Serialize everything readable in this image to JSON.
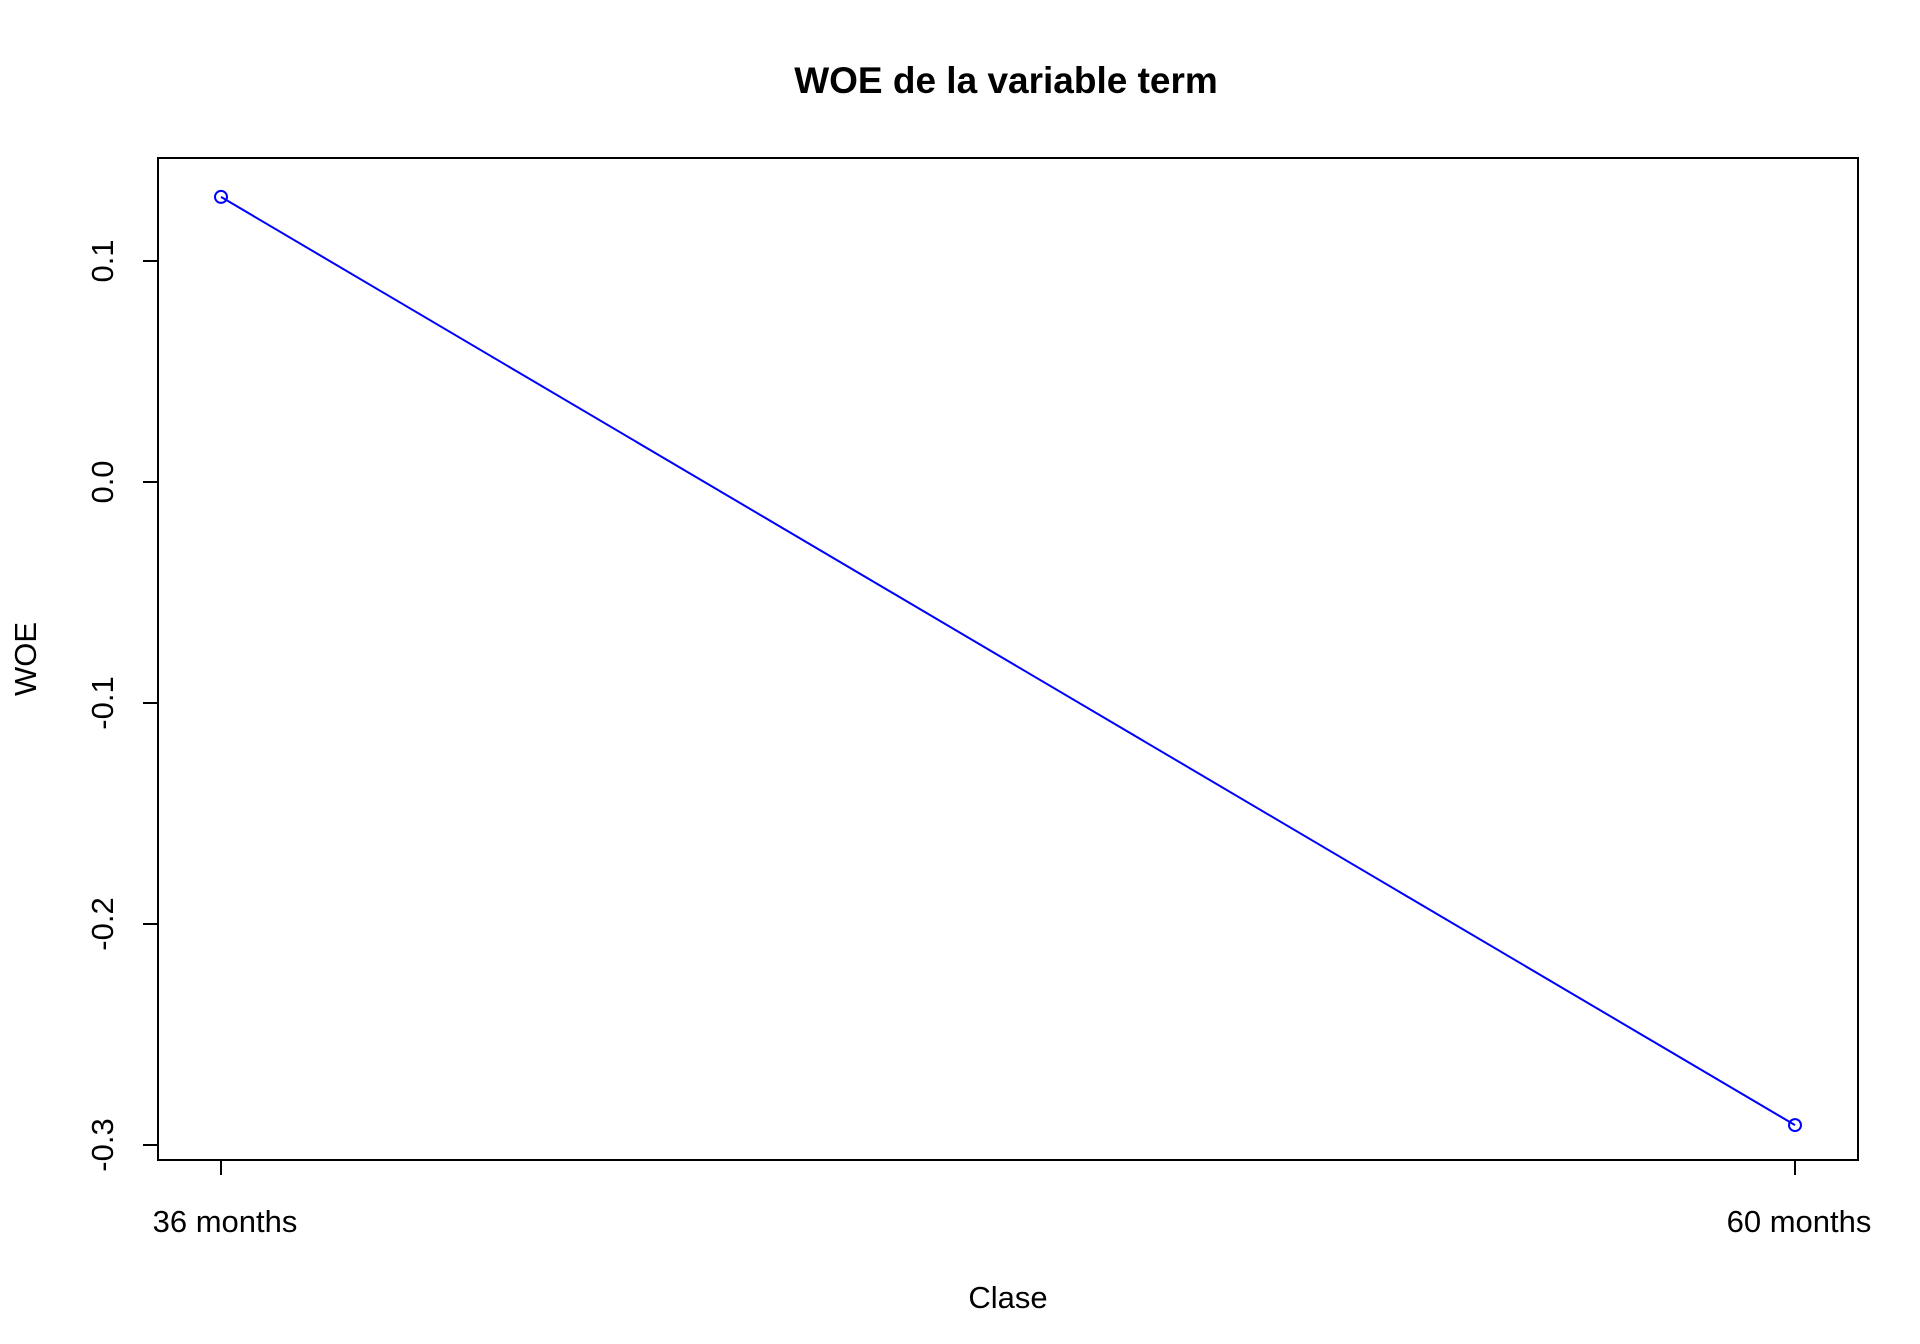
{
  "chart_data": {
    "type": "line",
    "title": "WOE de la variable term",
    "xlabel": "Clase",
    "ylabel": "WOE",
    "categories": [
      "36 months",
      "60 months"
    ],
    "series": [
      {
        "values": [
          0.129,
          -0.291
        ],
        "color": "#0000ff",
        "marker": "open-circle"
      }
    ],
    "yticks": [
      -0.3,
      -0.2,
      -0.1,
      0.0,
      0.1
    ],
    "ytick_labels": [
      "-0.3",
      "-0.2",
      "-0.1",
      "0.0",
      "0.1"
    ],
    "ylim": [
      -0.3,
      0.14
    ],
    "grid": false,
    "legend": "none"
  }
}
